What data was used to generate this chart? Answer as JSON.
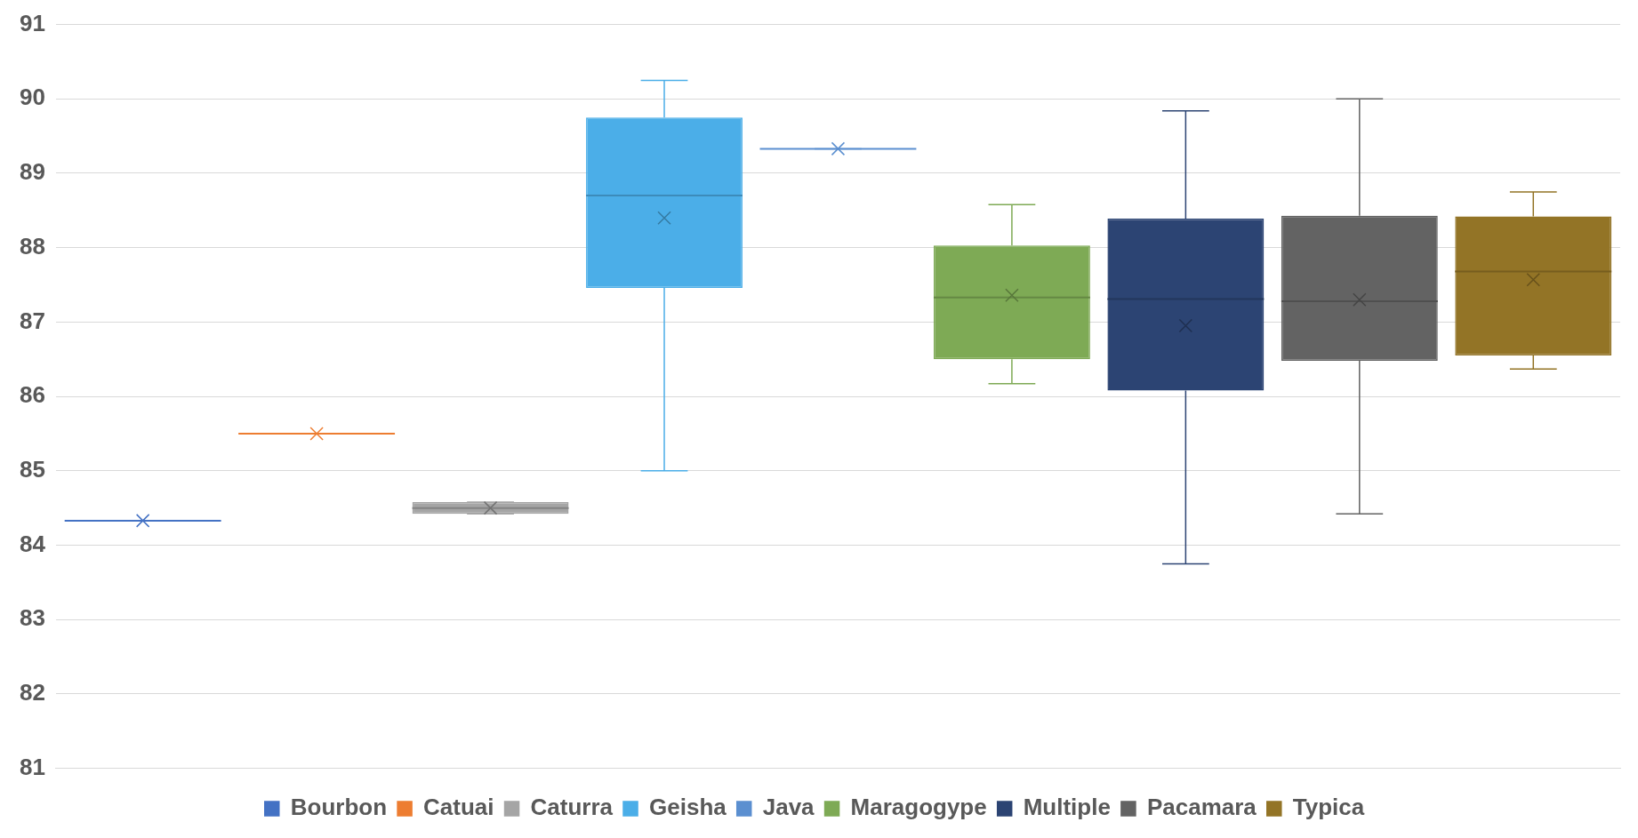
{
  "chart_data": {
    "type": "box",
    "categories": [
      null
    ],
    "ylim": [
      81,
      91
    ],
    "yticks": [
      81,
      82,
      83,
      84,
      85,
      86,
      87,
      88,
      89,
      90,
      91
    ],
    "grid": "y",
    "legend": "bottom",
    "marker": "cross",
    "series": [
      {
        "name": "Bourbon",
        "color": "#4472c4",
        "boxes": [
          {
            "low": 84.33,
            "q1": 84.33,
            "median": 84.33,
            "q3": 84.33,
            "high": 84.33,
            "mean": 84.33
          }
        ]
      },
      {
        "name": "Catuai",
        "color": "#ed7d31",
        "boxes": [
          {
            "low": 85.5,
            "q1": 85.5,
            "median": 85.5,
            "q3": 85.5,
            "high": 85.5,
            "mean": 85.5
          }
        ]
      },
      {
        "name": "Caturra",
        "color": "#a5a5a5",
        "boxes": [
          {
            "low": 84.42,
            "q1": 84.42,
            "median": 84.5,
            "q3": 84.58,
            "high": 84.58,
            "mean": 84.5
          }
        ]
      },
      {
        "name": "Geisha",
        "color": "#4baee8",
        "boxes": [
          {
            "low": 85.0,
            "q1": 87.46,
            "median": 88.7,
            "q3": 89.75,
            "high": 90.25,
            "mean": 88.4
          }
        ]
      },
      {
        "name": "Java",
        "color": "#5b8fd0",
        "boxes": [
          {
            "low": 89.33,
            "q1": 89.33,
            "median": 89.33,
            "q3": 89.33,
            "high": 89.33,
            "mean": 89.33
          }
        ]
      },
      {
        "name": "Maragogype",
        "color": "#7eaa55",
        "boxes": [
          {
            "low": 86.17,
            "q1": 86.5,
            "median": 87.33,
            "q3": 88.03,
            "high": 88.58,
            "mean": 87.36
          }
        ]
      },
      {
        "name": "Multiple",
        "color": "#2c4473",
        "boxes": [
          {
            "low": 83.75,
            "q1": 86.08,
            "median": 87.31,
            "q3": 88.39,
            "high": 89.84,
            "mean": 86.95
          }
        ]
      },
      {
        "name": "Pacamara",
        "color": "#636363",
        "boxes": [
          {
            "low": 84.42,
            "q1": 86.48,
            "median": 87.28,
            "q3": 88.43,
            "high": 90.0,
            "mean": 87.3
          }
        ]
      },
      {
        "name": "Typica",
        "color": "#937426",
        "boxes": [
          {
            "low": 86.37,
            "q1": 86.55,
            "median": 87.68,
            "q3": 88.42,
            "high": 88.75,
            "mean": 87.57
          }
        ]
      }
    ]
  }
}
